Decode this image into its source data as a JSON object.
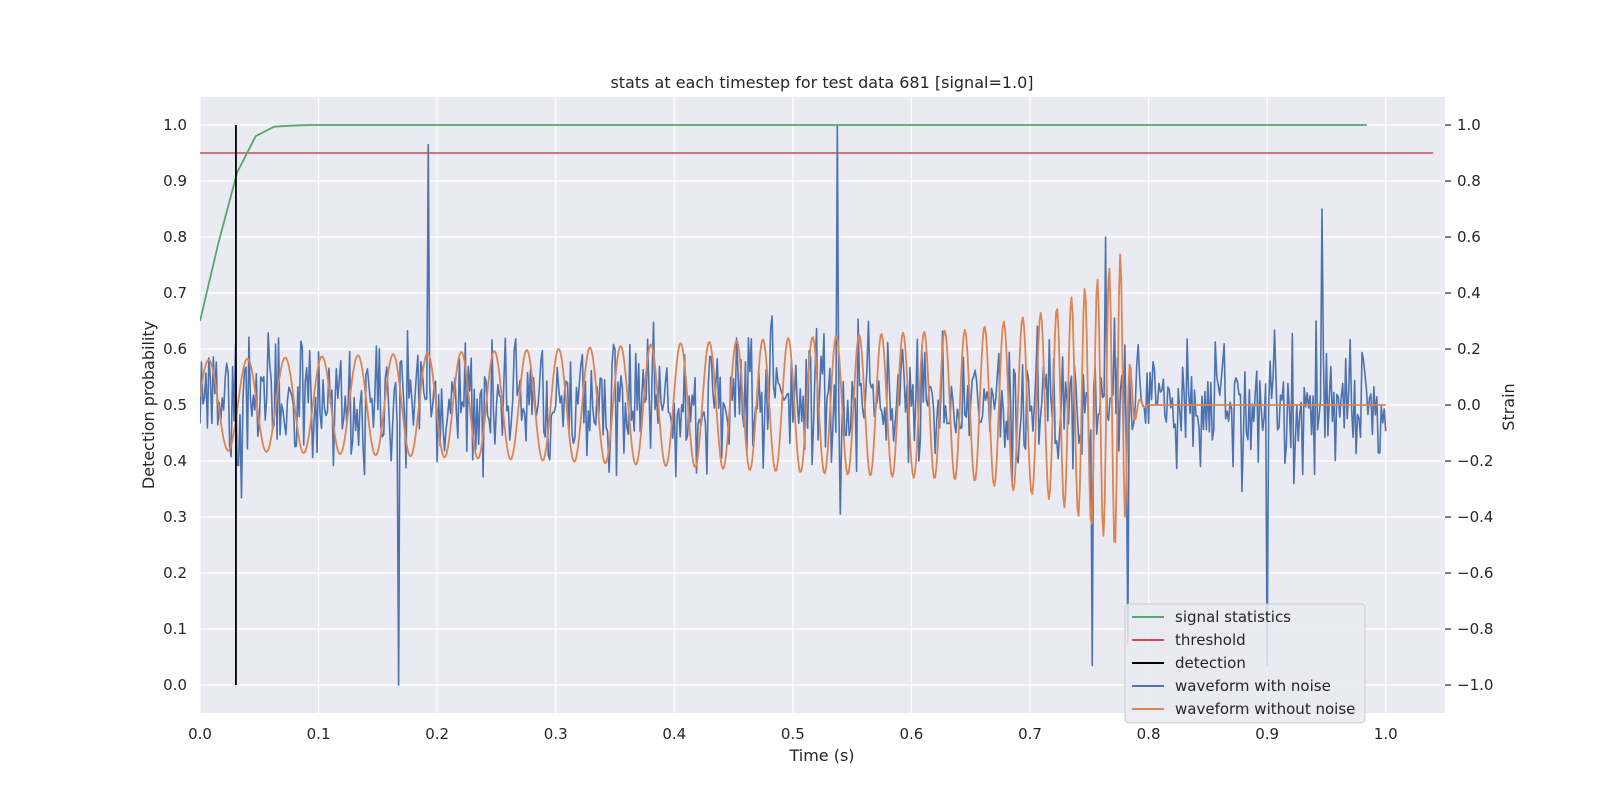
{
  "chart_data": {
    "type": "line",
    "title": "stats at each timestep for test data 681 [signal=1.0]",
    "xlabel": "Time (s)",
    "ylabel": "Detection probability",
    "y2label": "Strain",
    "xlim": [
      0.0,
      1.05
    ],
    "ylim": [
      -0.05,
      1.05
    ],
    "y2lim": [
      -1.1,
      1.1
    ],
    "xticks": [
      "0.0",
      "0.1",
      "0.2",
      "0.3",
      "0.4",
      "0.5",
      "0.6",
      "0.7",
      "0.8",
      "0.9",
      "1.0"
    ],
    "yticks": [
      "0.0",
      "0.1",
      "0.2",
      "0.3",
      "0.4",
      "0.5",
      "0.6",
      "0.7",
      "0.8",
      "0.9",
      "1.0"
    ],
    "y2ticks": [
      "−1.0",
      "−0.8",
      "−0.6",
      "−0.4",
      "−0.2",
      "0.0",
      "0.2",
      "0.4",
      "0.6",
      "0.8",
      "1.0"
    ],
    "grid": true,
    "legend_position": "lower-right",
    "colors": {
      "background": "#eaeaf2",
      "grid": "#ffffff",
      "signal_statistics": "#55a868",
      "threshold": "#c44e52",
      "detection": "#000000",
      "waveform_with_noise": "#4c72b0",
      "waveform_without_noise": "#dd8452"
    },
    "series": [
      {
        "name": "signal statistics",
        "axis": "left",
        "x": [
          0.0,
          0.0156,
          0.0313,
          0.0469,
          0.0625,
          0.0781,
          0.0938,
          0.2,
          0.4,
          0.6,
          0.8,
          0.984
        ],
        "y": [
          0.65,
          0.79,
          0.915,
          0.98,
          0.997,
          0.999,
          1.0,
          1.0,
          1.0,
          1.0,
          1.0,
          1.0
        ]
      },
      {
        "name": "threshold",
        "axis": "left",
        "x": [
          0.0,
          1.04
        ],
        "y": [
          0.95,
          0.95
        ]
      },
      {
        "name": "detection",
        "axis": "left",
        "x": [
          0.0303,
          0.0303
        ],
        "y": [
          0.0,
          1.0
        ]
      },
      {
        "name": "waveform with noise",
        "axis": "right",
        "samples": 800,
        "x_range": [
          0.0,
          1.0
        ],
        "y_range": [
          -1.0,
          1.0
        ],
        "notable_points": [
          {
            "x": 0.168,
            "y": -1.0
          },
          {
            "x": 0.192,
            "y": 0.93
          },
          {
            "x": 0.537,
            "y": 1.0
          },
          {
            "x": 0.752,
            "y": -0.93
          },
          {
            "x": 0.764,
            "y": 0.6
          },
          {
            "x": 0.782,
            "y": -0.85
          },
          {
            "x": 0.9,
            "y": -0.93
          },
          {
            "x": 0.946,
            "y": 0.7
          }
        ]
      },
      {
        "name": "waveform without noise",
        "axis": "right",
        "samples": 1000,
        "x_range": [
          0.0,
          1.0
        ],
        "envelope": [
          {
            "x": 0.0,
            "amp": 0.16
          },
          {
            "x": 0.3,
            "amp": 0.2
          },
          {
            "x": 0.5,
            "amp": 0.24
          },
          {
            "x": 0.65,
            "amp": 0.27
          },
          {
            "x": 0.72,
            "amp": 0.34
          },
          {
            "x": 0.76,
            "amp": 0.46
          },
          {
            "x": 0.778,
            "amp": 0.55
          }
        ],
        "frequency_hz": [
          {
            "x": 0.0,
            "f": 30
          },
          {
            "x": 0.4,
            "f": 40
          },
          {
            "x": 0.7,
            "f": 64
          },
          {
            "x": 0.778,
            "f": 110
          }
        ],
        "merger_x": 0.779,
        "ringdown_end_x": 0.8,
        "flat_after_x": 0.8
      }
    ]
  }
}
